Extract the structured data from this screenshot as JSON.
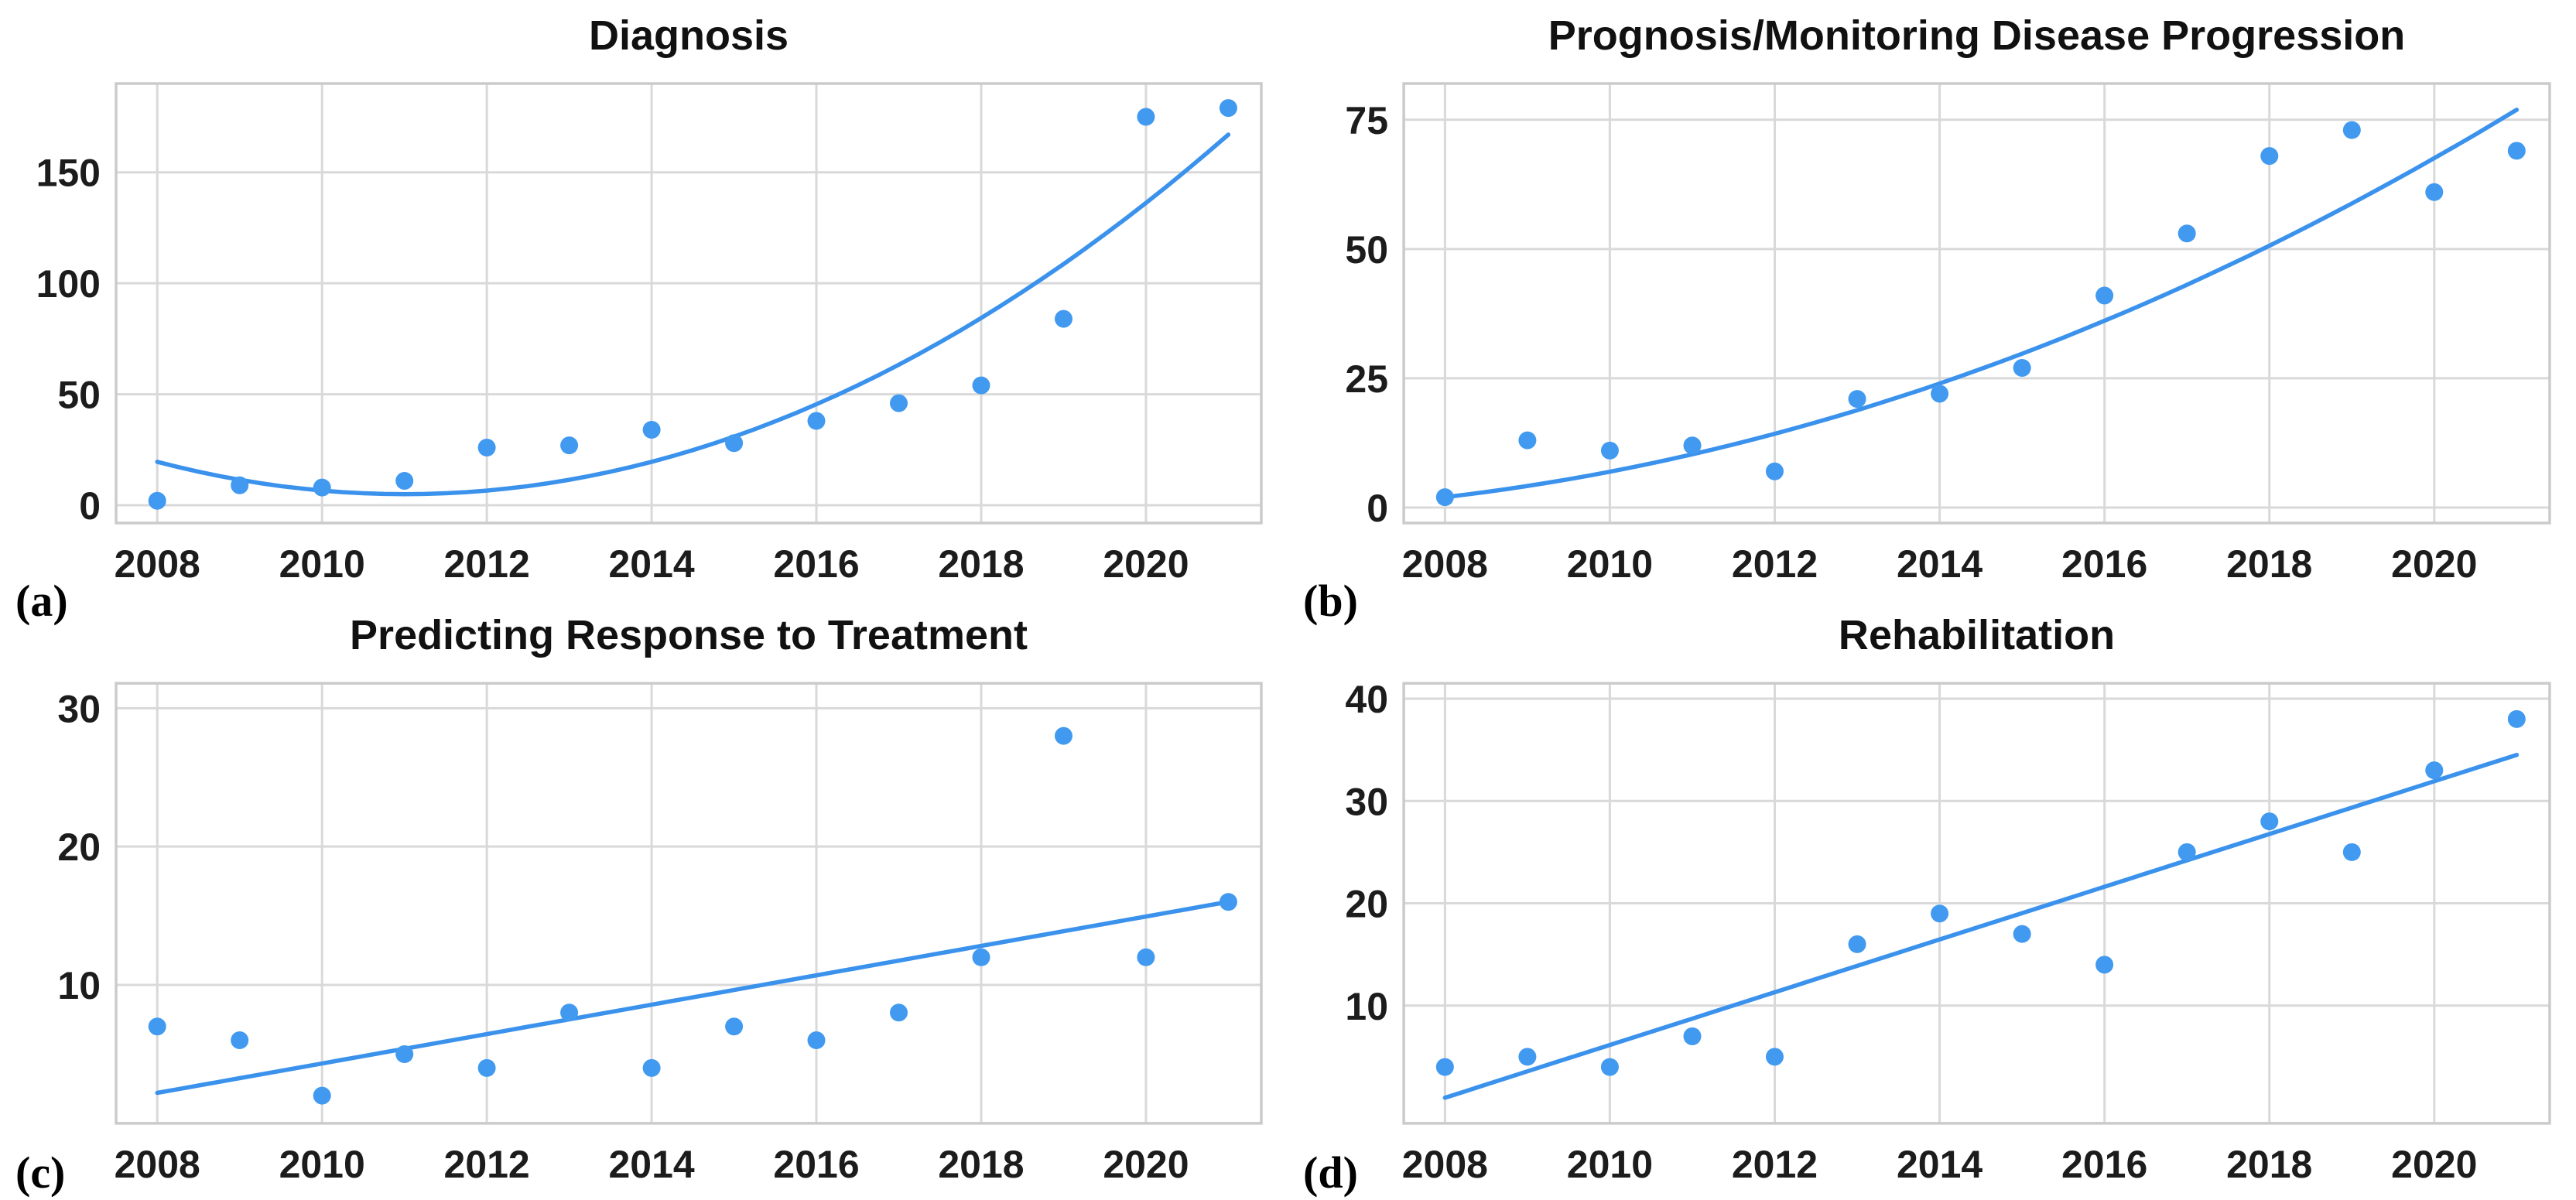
{
  "page": {
    "background": "#ffffff",
    "description_title": ""
  },
  "style": {
    "accent_line": "#3B92EC",
    "accent_dot": "#419AF0",
    "grid_color": "#D9D9D9",
    "spine_color": "#CBCBCB",
    "title_color": "#111111",
    "tick_color": "#1c1c1c",
    "letter_color": "#000000"
  },
  "chart_data": [
    {
      "type": "scatter",
      "panel_label": "(a)",
      "title": "Diagnosis",
      "x": [
        2008,
        2009,
        2010,
        2011,
        2012,
        2013,
        2014,
        2015,
        2016,
        2017,
        2018,
        2019,
        2020,
        2021
      ],
      "values": [
        2,
        9,
        8,
        11,
        26,
        27,
        34,
        28,
        38,
        46,
        54,
        84,
        175,
        179
      ],
      "trend": "quadratic",
      "trend_poly": [
        1.62,
        -9.72,
        19.58
      ],
      "xticks": [
        2008,
        2010,
        2012,
        2014,
        2016,
        2018,
        2020
      ],
      "yticks": [
        0,
        50,
        100,
        150
      ],
      "xlim": [
        2007.5,
        2021.4
      ],
      "ylim": [
        -8,
        190
      ],
      "grid": true,
      "legend": "none",
      "xlabel": "",
      "ylabel": ""
    },
    {
      "type": "scatter",
      "panel_label": "(b)",
      "title": "Prognosis/Monitoring Disease Progression",
      "x": [
        2008,
        2009,
        2010,
        2011,
        2012,
        2013,
        2014,
        2015,
        2016,
        2017,
        2018,
        2019,
        2020,
        2021
      ],
      "values": [
        2,
        13,
        11,
        12,
        7,
        21,
        22,
        27,
        41,
        53,
        68,
        73,
        61,
        69
      ],
      "trend": "quadratic",
      "trend_poly": [
        0.3,
        1.864,
        2.0
      ],
      "xticks": [
        2008,
        2010,
        2012,
        2014,
        2016,
        2018,
        2020
      ],
      "yticks": [
        0,
        25,
        50,
        75
      ],
      "xlim": [
        2007.5,
        2021.4
      ],
      "ylim": [
        -3,
        82
      ],
      "grid": true,
      "legend": "none",
      "xlabel": "",
      "ylabel": ""
    },
    {
      "type": "scatter",
      "panel_label": "(c)",
      "title": "Predicting Response to Treatment",
      "x": [
        2008,
        2009,
        2010,
        2011,
        2012,
        2013,
        2014,
        2015,
        2016,
        2017,
        2018,
        2019,
        2020,
        2021
      ],
      "values": [
        7,
        6,
        2,
        5,
        4,
        8,
        4,
        7,
        6,
        8,
        12,
        28,
        12,
        16
      ],
      "trend": "linear",
      "trend_poly": [
        0,
        1.062,
        2.2
      ],
      "xticks": [
        2008,
        2010,
        2012,
        2014,
        2016,
        2018,
        2020
      ],
      "yticks": [
        10,
        20,
        30
      ],
      "xlim": [
        2007.5,
        2021.4
      ],
      "ylim": [
        0,
        31.8
      ],
      "grid": true,
      "legend": "none",
      "xlabel": "",
      "ylabel": ""
    },
    {
      "type": "scatter",
      "panel_label": "(d)",
      "title": "Rehabilitation",
      "x": [
        2008,
        2009,
        2010,
        2011,
        2012,
        2013,
        2014,
        2015,
        2016,
        2017,
        2018,
        2019,
        2020,
        2021
      ],
      "values": [
        4,
        5,
        4,
        7,
        5,
        16,
        19,
        17,
        14,
        25,
        28,
        25,
        33,
        38
      ],
      "trend": "linear",
      "trend_poly": [
        0,
        2.577,
        1.0
      ],
      "xticks": [
        2008,
        2010,
        2012,
        2014,
        2016,
        2018,
        2020
      ],
      "yticks": [
        10,
        20,
        30,
        40
      ],
      "xlim": [
        2007.5,
        2021.4
      ],
      "ylim": [
        -1.5,
        41.5
      ],
      "grid": true,
      "legend": "none",
      "xlabel": "",
      "ylabel": ""
    }
  ]
}
